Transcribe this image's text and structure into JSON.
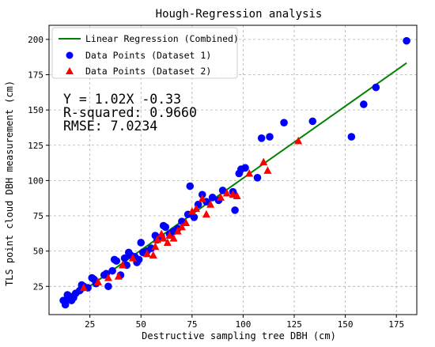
{
  "chart_data": {
    "type": "scatter",
    "title": "Hough-Regression analysis",
    "xlabel": "Destructive sampling tree DBH (cm)",
    "ylabel": "TLS point cloud DBH measurement (cm)",
    "xlim": [
      5,
      185
    ],
    "ylim": [
      5,
      210
    ],
    "xticks": [
      25,
      50,
      75,
      100,
      125,
      150,
      175
    ],
    "yticks": [
      25,
      50,
      75,
      100,
      125,
      150,
      175,
      200
    ],
    "grid": true,
    "legend_position": "top-left",
    "annotation": {
      "line1": "Y = 1.02X -0.33",
      "line2": "R-squared: 0.9660",
      "line3": "RMSE: 7.0234"
    },
    "regression": {
      "label": "Linear Regression (Combined)",
      "slope": 1.02,
      "intercept": -0.33,
      "x_range": [
        12,
        180
      ],
      "color": "#008000"
    },
    "series": [
      {
        "name": "Data Points (Dataset 1)",
        "marker": "circle",
        "color": "#0000ff",
        "points": [
          [
            12,
            15
          ],
          [
            13,
            14
          ],
          [
            14,
            16
          ],
          [
            13,
            12
          ],
          [
            15,
            18
          ],
          [
            16,
            15
          ],
          [
            14,
            19
          ],
          [
            17,
            17
          ],
          [
            18,
            20
          ],
          [
            20,
            22
          ],
          [
            21,
            26
          ],
          [
            22,
            25
          ],
          [
            24,
            24
          ],
          [
            26,
            31
          ],
          [
            27,
            30
          ],
          [
            28,
            27
          ],
          [
            32,
            33
          ],
          [
            33,
            34
          ],
          [
            34,
            25
          ],
          [
            36,
            36
          ],
          [
            37,
            44
          ],
          [
            38,
            43
          ],
          [
            40,
            33
          ],
          [
            42,
            45
          ],
          [
            43,
            40
          ],
          [
            44,
            49
          ],
          [
            45,
            47
          ],
          [
            47,
            46
          ],
          [
            48,
            42
          ],
          [
            49,
            44
          ],
          [
            50,
            56
          ],
          [
            51,
            49
          ],
          [
            53,
            50
          ],
          [
            55,
            52
          ],
          [
            57,
            61
          ],
          [
            58,
            58
          ],
          [
            60,
            60
          ],
          [
            61,
            68
          ],
          [
            62,
            67
          ],
          [
            64,
            62
          ],
          [
            66,
            64
          ],
          [
            68,
            66
          ],
          [
            70,
            71
          ],
          [
            73,
            76
          ],
          [
            74,
            96
          ],
          [
            76,
            74
          ],
          [
            78,
            83
          ],
          [
            80,
            90
          ],
          [
            82,
            85
          ],
          [
            85,
            88
          ],
          [
            88,
            86
          ],
          [
            90,
            93
          ],
          [
            95,
            92
          ],
          [
            96,
            79
          ],
          [
            98,
            105
          ],
          [
            99,
            108
          ],
          [
            101,
            109
          ],
          [
            107,
            102
          ],
          [
            109,
            130
          ],
          [
            113,
            131
          ],
          [
            120,
            141
          ],
          [
            134,
            142
          ],
          [
            153,
            131
          ],
          [
            159,
            154
          ],
          [
            165,
            166
          ],
          [
            180,
            199
          ]
        ]
      },
      {
        "name": "Data Points (Dataset 2)",
        "marker": "triangle",
        "color": "#ff0000",
        "points": [
          [
            22,
            24
          ],
          [
            29,
            28
          ],
          [
            34,
            31
          ],
          [
            39,
            32
          ],
          [
            41,
            40
          ],
          [
            46,
            45
          ],
          [
            53,
            48
          ],
          [
            56,
            47
          ],
          [
            57,
            53
          ],
          [
            58,
            58
          ],
          [
            60,
            62
          ],
          [
            61,
            59
          ],
          [
            63,
            56
          ],
          [
            64,
            61
          ],
          [
            66,
            59
          ],
          [
            68,
            64
          ],
          [
            70,
            67
          ],
          [
            72,
            70
          ],
          [
            75,
            78
          ],
          [
            77,
            80
          ],
          [
            80,
            87
          ],
          [
            82,
            76
          ],
          [
            84,
            83
          ],
          [
            89,
            88
          ],
          [
            92,
            91
          ],
          [
            95,
            90
          ],
          [
            97,
            89
          ],
          [
            103,
            105
          ],
          [
            110,
            113
          ],
          [
            112,
            107
          ],
          [
            127,
            128
          ]
        ]
      }
    ]
  }
}
